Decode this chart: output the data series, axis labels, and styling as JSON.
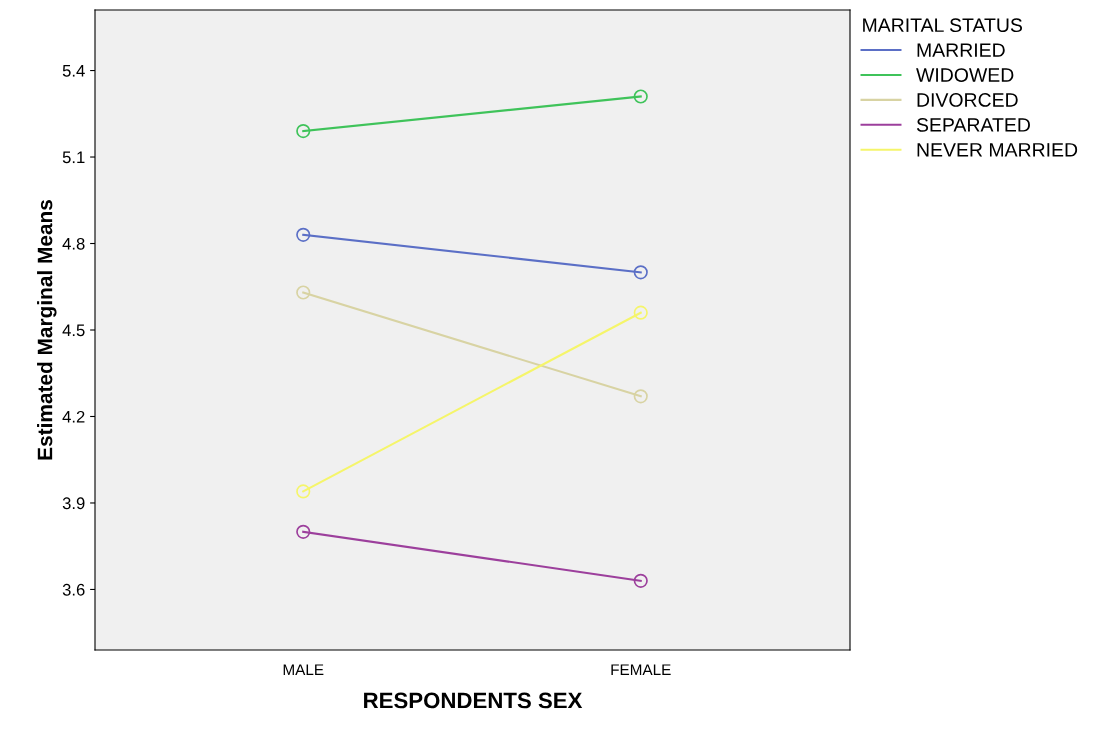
{
  "chart_data": {
    "type": "line",
    "xlabel": "RESPONDENTS SEX",
    "ylabel": "Estimated Marginal Means",
    "legend_title": "MARITAL STATUS",
    "legend": "top right",
    "marker": "circle",
    "line_style": "solid",
    "grid": false,
    "categories": [
      "MALE",
      "FEMALE"
    ],
    "ylim": [
      3.39,
      5.61
    ],
    "yticks": [
      3.6,
      3.9,
      4.2,
      4.5,
      4.8,
      5.1,
      5.4
    ],
    "series": [
      {
        "name": "MARRIED",
        "color": "#5b6fc6",
        "values": [
          4.83,
          4.7
        ]
      },
      {
        "name": "WIDOWED",
        "color": "#3fc35a",
        "values": [
          5.19,
          5.31
        ]
      },
      {
        "name": "DIVORCED",
        "color": "#d8d3a3",
        "values": [
          4.63,
          4.27
        ]
      },
      {
        "name": "SEPARATED",
        "color": "#9c3f9c",
        "values": [
          3.8,
          3.63
        ]
      },
      {
        "name": "NEVER MARRIED",
        "color": "#f5f56a",
        "values": [
          3.94,
          4.56
        ]
      }
    ]
  }
}
